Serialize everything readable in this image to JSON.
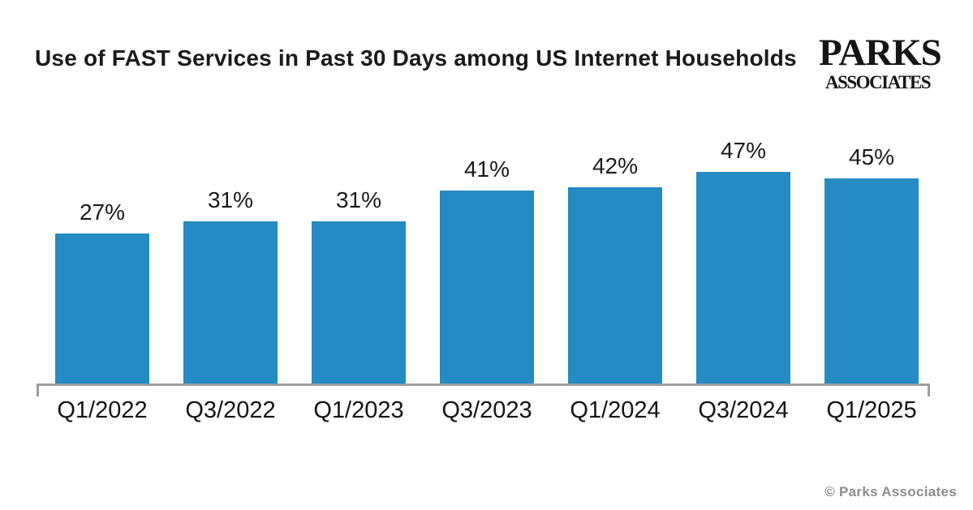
{
  "header": {
    "title": "Use of FAST Services in Past 30 Days among US Internet Households",
    "logo": {
      "line1": "PARKS",
      "line2": "ASSOCIATES"
    }
  },
  "chart_data": {
    "type": "bar",
    "title": "Use of FAST Services in Past 30 Days among US Internet Households",
    "categories": [
      "Q1/2022",
      "Q3/2022",
      "Q1/2023",
      "Q3/2023",
      "Q1/2024",
      "Q3/2024",
      "Q1/2025"
    ],
    "values": [
      27,
      31,
      31,
      41,
      42,
      47,
      45
    ],
    "data_labels": [
      "27%",
      "31%",
      "31%",
      "41%",
      "42%",
      "47%",
      "45%"
    ],
    "unit": "%",
    "xlabel": "",
    "ylabel": "",
    "ylim": [
      0,
      50
    ],
    "grid": false,
    "legend": false,
    "bar_color": "#268bc2",
    "axis_color": "#9e9e9e"
  },
  "footer": {
    "copyright": "© Parks Associates"
  },
  "colors": {
    "bar": "#268bc2",
    "axis": "#9e9e9e",
    "title_text": "#1b1b1b",
    "label_text": "#1a1a1a",
    "footer_text": "#8c8c8c",
    "background": "#ffffff"
  }
}
